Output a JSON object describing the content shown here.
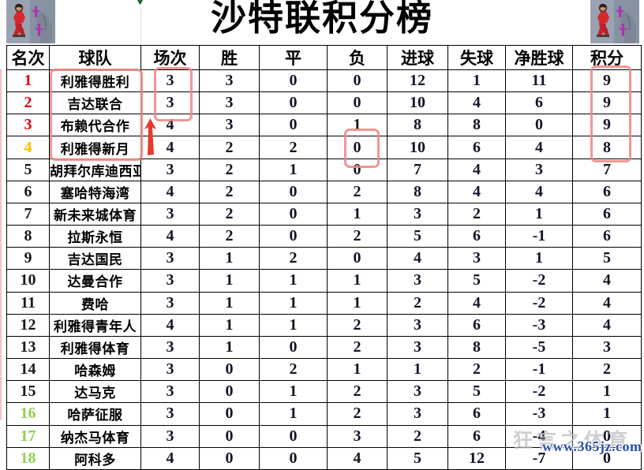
{
  "title": "沙特联积分榜",
  "chart_data": {
    "type": "table",
    "title": "沙特联积分榜",
    "columns": [
      "名次",
      "球队",
      "场次",
      "胜",
      "平",
      "负",
      "进球",
      "失球",
      "净胜球",
      "积分"
    ],
    "rows": [
      {
        "rank": "1",
        "team": "利雅得胜利",
        "played": "3",
        "win": "3",
        "draw": "0",
        "loss": "0",
        "gf": "12",
        "ga": "1",
        "gd": "11",
        "pts": "9",
        "rank_color": "#e60012"
      },
      {
        "rank": "2",
        "team": "吉达联合",
        "played": "3",
        "win": "3",
        "draw": "0",
        "loss": "0",
        "gf": "10",
        "ga": "4",
        "gd": "6",
        "pts": "9",
        "rank_color": "#e60012"
      },
      {
        "rank": "3",
        "team": "布赖代合作",
        "played": "4",
        "win": "3",
        "draw": "0",
        "loss": "1",
        "gf": "8",
        "ga": "8",
        "gd": "0",
        "pts": "9",
        "rank_color": "#e60012"
      },
      {
        "rank": "4",
        "team": "利雅得新月",
        "played": "4",
        "win": "2",
        "draw": "2",
        "loss": "0",
        "gf": "10",
        "ga": "6",
        "gd": "4",
        "pts": "8",
        "rank_color": "#ffc000"
      },
      {
        "rank": "5",
        "team": "胡拜尔库迪西亚",
        "played": "3",
        "win": "2",
        "draw": "1",
        "loss": "0",
        "gf": "7",
        "ga": "4",
        "gd": "3",
        "pts": "7",
        "rank_color": "#1a1a1a"
      },
      {
        "rank": "6",
        "team": "塞哈特海湾",
        "played": "4",
        "win": "2",
        "draw": "0",
        "loss": "2",
        "gf": "8",
        "ga": "4",
        "gd": "4",
        "pts": "6",
        "rank_color": "#1a1a1a"
      },
      {
        "rank": "7",
        "team": "新未来城体育",
        "played": "3",
        "win": "2",
        "draw": "0",
        "loss": "1",
        "gf": "3",
        "ga": "2",
        "gd": "1",
        "pts": "6",
        "rank_color": "#1a1a1a"
      },
      {
        "rank": "8",
        "team": "拉斯永恒",
        "played": "4",
        "win": "2",
        "draw": "0",
        "loss": "2",
        "gf": "5",
        "ga": "6",
        "gd": "-1",
        "pts": "6",
        "rank_color": "#1a1a1a"
      },
      {
        "rank": "9",
        "team": "吉达国民",
        "played": "3",
        "win": "1",
        "draw": "2",
        "loss": "0",
        "gf": "4",
        "ga": "3",
        "gd": "1",
        "pts": "5",
        "rank_color": "#1a1a1a"
      },
      {
        "rank": "10",
        "team": "达曼合作",
        "played": "3",
        "win": "1",
        "draw": "1",
        "loss": "1",
        "gf": "3",
        "ga": "5",
        "gd": "-2",
        "pts": "4",
        "rank_color": "#1a1a1a"
      },
      {
        "rank": "11",
        "team": "费哈",
        "played": "3",
        "win": "1",
        "draw": "1",
        "loss": "1",
        "gf": "2",
        "ga": "4",
        "gd": "-2",
        "pts": "4",
        "rank_color": "#1a1a1a"
      },
      {
        "rank": "12",
        "team": "利雅得青年人",
        "played": "4",
        "win": "1",
        "draw": "1",
        "loss": "2",
        "gf": "3",
        "ga": "6",
        "gd": "-3",
        "pts": "4",
        "rank_color": "#1a1a1a"
      },
      {
        "rank": "13",
        "team": "利雅得体育",
        "played": "3",
        "win": "1",
        "draw": "0",
        "loss": "2",
        "gf": "3",
        "ga": "8",
        "gd": "-5",
        "pts": "3",
        "rank_color": "#1a1a1a"
      },
      {
        "rank": "14",
        "team": "哈森姆",
        "played": "3",
        "win": "0",
        "draw": "2",
        "loss": "1",
        "gf": "1",
        "ga": "2",
        "gd": "-1",
        "pts": "2",
        "rank_color": "#1a1a1a"
      },
      {
        "rank": "15",
        "team": "达马克",
        "played": "3",
        "win": "0",
        "draw": "1",
        "loss": "2",
        "gf": "3",
        "ga": "5",
        "gd": "-2",
        "pts": "1",
        "rank_color": "#1a1a1a"
      },
      {
        "rank": "16",
        "team": "哈萨征服",
        "played": "3",
        "win": "0",
        "draw": "1",
        "loss": "2",
        "gf": "3",
        "ga": "6",
        "gd": "-3",
        "pts": "1",
        "rank_color": "#92d050"
      },
      {
        "rank": "17",
        "team": "纳杰马体育",
        "played": "3",
        "win": "0",
        "draw": "0",
        "loss": "3",
        "gf": "2",
        "ga": "6",
        "gd": "-4",
        "pts": "0",
        "rank_color": "#92d050"
      },
      {
        "rank": "18",
        "team": "阿科多",
        "played": "4",
        "win": "0",
        "draw": "0",
        "loss": "4",
        "gf": "5",
        "ga": "12",
        "gd": "-7",
        "pts": "0",
        "rank_color": "#92d050"
      }
    ]
  },
  "watermark": {
    "line1": "狂言之体育",
    "line2": "www.365jz.com"
  },
  "colors": {
    "rank_top3": "#e60012",
    "rank_fourth": "#ffc000",
    "rank_normal": "#1a1a1a",
    "rank_bottom3": "#92d050",
    "annotation_box": "#f08480",
    "arrow_red": "#e8382d",
    "watermark_blue": "#2b4fa6",
    "grid_line": "#000000"
  },
  "icons": {
    "corner_image": "basketball-collage-image",
    "arrow": "up-arrow-icon",
    "green_mark": "green-tick-mark"
  },
  "annotations": {
    "boxes": [
      "team-names-top4",
      "played-top2",
      "loss-row4",
      "points-top4"
    ],
    "arrow": "up-arrow-beside-played-column"
  }
}
